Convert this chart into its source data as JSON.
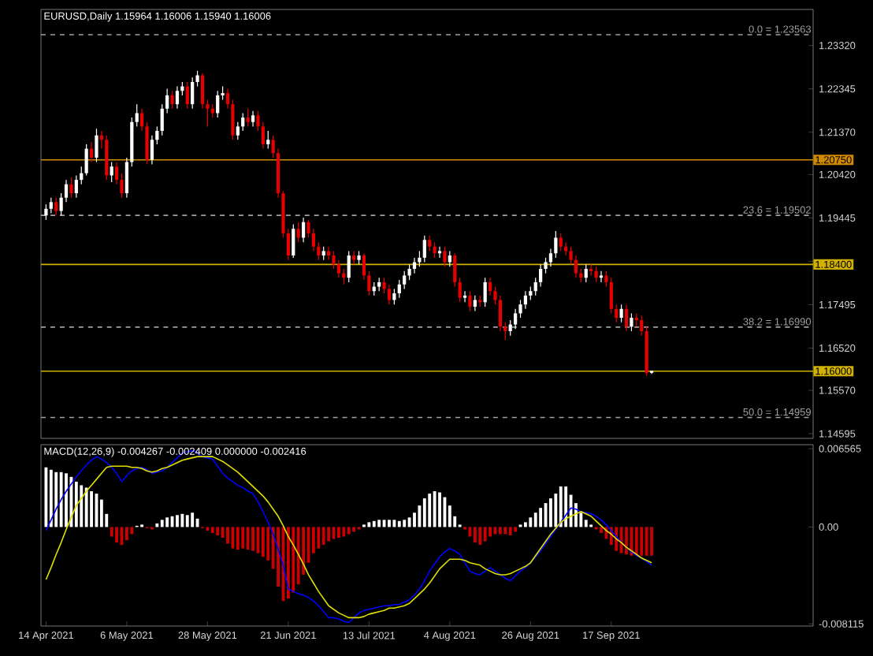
{
  "chart_data": [
    {
      "type": "candlestick",
      "title": "EURUSD,Daily  1.15964 1.16006 1.15940 1.16006",
      "tick_labels": "y",
      "categories": [
        null,
        null,
        null,
        null,
        null,
        null,
        null,
        null,
        null,
        null,
        null,
        null,
        null,
        null,
        null,
        null,
        null,
        null,
        null,
        null,
        null,
        null,
        null,
        null,
        null,
        null,
        null,
        null,
        null,
        null,
        null,
        null,
        null,
        null,
        null,
        null,
        null,
        null,
        null,
        null,
        null,
        null,
        null,
        null,
        null,
        null,
        null,
        null,
        null,
        null,
        null,
        null,
        null,
        null,
        null,
        null,
        null,
        null,
        null,
        null,
        null,
        null,
        null,
        null,
        null,
        null,
        null,
        null,
        null,
        null,
        null,
        null,
        null,
        null,
        null,
        null,
        null,
        null,
        null,
        null,
        null,
        null,
        null,
        null,
        null,
        null,
        null,
        null,
        null,
        null,
        null,
        null,
        null,
        null,
        null,
        null,
        null,
        null,
        null,
        null,
        null,
        null,
        null,
        null,
        null,
        null,
        null,
        null,
        null,
        null,
        null,
        null,
        null,
        null,
        null,
        null,
        null,
        null,
        null,
        null,
        null,
        null,
        null,
        null,
        null,
        null,
        null,
        null,
        null,
        null,
        null,
        null,
        null,
        null,
        null,
        null,
        null,
        null,
        null,
        null,
        null,
        null,
        null,
        null,
        null,
        null,
        null,
        null,
        null,
        null,
        null,
        null,
        null
      ],
      "ohlc": [
        [
          1.195,
          1.1975,
          1.194,
          1.1965
        ],
        [
          1.1965,
          1.199,
          1.1955,
          1.198
        ],
        [
          1.198,
          1.199,
          1.195,
          1.196
        ],
        [
          1.196,
          1.2,
          1.195,
          1.199
        ],
        [
          1.199,
          1.203,
          1.198,
          1.202
        ],
        [
          1.202,
          1.2035,
          1.199,
          1.2
        ],
        [
          1.2,
          1.204,
          1.199,
          1.203
        ],
        [
          1.203,
          1.206,
          1.202,
          1.2045
        ],
        [
          1.2045,
          1.211,
          1.204,
          1.21
        ],
        [
          1.21,
          1.2115,
          1.207,
          1.208
        ],
        [
          1.208,
          1.2145,
          1.207,
          1.213
        ],
        [
          1.213,
          1.214,
          1.21,
          1.212
        ],
        [
          1.212,
          1.213,
          1.203,
          1.204
        ],
        [
          1.204,
          1.207,
          1.2025,
          1.206
        ],
        [
          1.206,
          1.207,
          1.202,
          1.203
        ],
        [
          1.203,
          1.2045,
          1.199,
          1.2
        ],
        [
          1.2,
          1.208,
          1.199,
          1.207
        ],
        [
          1.207,
          1.217,
          1.206,
          1.216
        ],
        [
          1.216,
          1.22,
          1.215,
          1.218
        ],
        [
          1.218,
          1.219,
          1.214,
          1.215
        ],
        [
          1.215,
          1.216,
          1.2065,
          1.2075
        ],
        [
          1.2075,
          1.213,
          1.2065,
          1.212
        ],
        [
          1.212,
          1.215,
          1.211,
          1.214
        ],
        [
          1.214,
          1.22,
          1.213,
          1.219
        ],
        [
          1.219,
          1.2235,
          1.218,
          1.222
        ],
        [
          1.222,
          1.223,
          1.219,
          1.22
        ],
        [
          1.22,
          1.224,
          1.219,
          1.223
        ],
        [
          1.223,
          1.225,
          1.222,
          1.224
        ],
        [
          1.224,
          1.225,
          1.219,
          1.22
        ],
        [
          1.22,
          1.226,
          1.219,
          1.225
        ],
        [
          1.225,
          1.2275,
          1.224,
          1.2265
        ],
        [
          1.2265,
          1.227,
          1.219,
          1.22
        ],
        [
          1.22,
          1.221,
          1.215,
          1.219
        ],
        [
          1.219,
          1.22,
          1.217,
          1.218
        ],
        [
          1.218,
          1.223,
          1.217,
          1.222
        ],
        [
          1.222,
          1.224,
          1.221,
          1.2225
        ],
        [
          1.2225,
          1.2235,
          1.219,
          1.22
        ],
        [
          1.22,
          1.221,
          1.212,
          1.213
        ],
        [
          1.213,
          1.216,
          1.212,
          1.215
        ],
        [
          1.215,
          1.218,
          1.214,
          1.217
        ],
        [
          1.217,
          1.219,
          1.215,
          1.216
        ],
        [
          1.216,
          1.2185,
          1.215,
          1.2175
        ],
        [
          1.2175,
          1.2185,
          1.214,
          1.215
        ],
        [
          1.215,
          1.216,
          1.21,
          1.211
        ],
        [
          1.211,
          1.214,
          1.21,
          1.212
        ],
        [
          1.212,
          1.213,
          1.208,
          1.209
        ],
        [
          1.209,
          1.21,
          1.199,
          1.2
        ],
        [
          1.2,
          1.2005,
          1.19,
          1.191
        ],
        [
          1.191,
          1.192,
          1.185,
          1.186
        ],
        [
          1.186,
          1.193,
          1.1855,
          1.192
        ],
        [
          1.192,
          1.1935,
          1.189,
          1.19
        ],
        [
          1.19,
          1.1945,
          1.189,
          1.1935
        ],
        [
          1.1935,
          1.194,
          1.19,
          1.191
        ],
        [
          1.191,
          1.192,
          1.187,
          1.188
        ],
        [
          1.188,
          1.189,
          1.185,
          1.186
        ],
        [
          1.186,
          1.188,
          1.185,
          1.187
        ],
        [
          1.187,
          1.188,
          1.185,
          1.186
        ],
        [
          1.186,
          1.187,
          1.183,
          1.184
        ],
        [
          1.184,
          1.185,
          1.181,
          1.182
        ],
        [
          1.182,
          1.183,
          1.1795,
          1.181
        ],
        [
          1.181,
          1.187,
          1.18,
          1.186
        ],
        [
          1.186,
          1.187,
          1.184,
          1.185
        ],
        [
          1.185,
          1.187,
          1.184,
          1.186
        ],
        [
          1.186,
          1.1865,
          1.1805,
          1.1815
        ],
        [
          1.1815,
          1.1825,
          1.177,
          1.178
        ],
        [
          1.178,
          1.18,
          1.177,
          1.179
        ],
        [
          1.179,
          1.181,
          1.178,
          1.18
        ],
        [
          1.18,
          1.181,
          1.1775,
          1.1785
        ],
        [
          1.1785,
          1.1795,
          1.175,
          1.176
        ],
        [
          1.176,
          1.1785,
          1.175,
          1.1775
        ],
        [
          1.1775,
          1.1805,
          1.1765,
          1.1795
        ],
        [
          1.1795,
          1.1825,
          1.1785,
          1.1815
        ],
        [
          1.1815,
          1.184,
          1.1805,
          1.183
        ],
        [
          1.183,
          1.1855,
          1.182,
          1.1845
        ],
        [
          1.1845,
          1.187,
          1.1835,
          1.1855
        ],
        [
          1.1855,
          1.1905,
          1.1845,
          1.1895
        ],
        [
          1.1895,
          1.1905,
          1.187,
          1.188
        ],
        [
          1.188,
          1.189,
          1.1855,
          1.1865
        ],
        [
          1.1865,
          1.188,
          1.1855,
          1.187
        ],
        [
          1.187,
          1.188,
          1.1835,
          1.1845
        ],
        [
          1.1845,
          1.187,
          1.1835,
          1.186
        ],
        [
          1.186,
          1.1865,
          1.179,
          1.18
        ],
        [
          1.18,
          1.181,
          1.1755,
          1.1765
        ],
        [
          1.1765,
          1.178,
          1.1755,
          1.177
        ],
        [
          1.177,
          1.178,
          1.1735,
          1.1745
        ],
        [
          1.1745,
          1.177,
          1.1735,
          1.176
        ],
        [
          1.176,
          1.177,
          1.1745,
          1.1755
        ],
        [
          1.1755,
          1.181,
          1.1745,
          1.18
        ],
        [
          1.18,
          1.181,
          1.177,
          1.178
        ],
        [
          1.178,
          1.179,
          1.175,
          1.176
        ],
        [
          1.176,
          1.177,
          1.169,
          1.17
        ],
        [
          1.17,
          1.171,
          1.167,
          1.169
        ],
        [
          1.169,
          1.1715,
          1.168,
          1.1705
        ],
        [
          1.1705,
          1.174,
          1.1695,
          1.173
        ],
        [
          1.173,
          1.176,
          1.172,
          1.175
        ],
        [
          1.175,
          1.178,
          1.174,
          1.177
        ],
        [
          1.177,
          1.179,
          1.176,
          1.178
        ],
        [
          1.178,
          1.181,
          1.177,
          1.18
        ],
        [
          1.18,
          1.184,
          1.179,
          1.183
        ],
        [
          1.183,
          1.1855,
          1.182,
          1.1845
        ],
        [
          1.1845,
          1.1875,
          1.1835,
          1.1865
        ],
        [
          1.1865,
          1.1915,
          1.1855,
          1.19
        ],
        [
          1.19,
          1.191,
          1.187,
          1.188
        ],
        [
          1.188,
          1.189,
          1.186,
          1.187
        ],
        [
          1.187,
          1.188,
          1.184,
          1.185
        ],
        [
          1.185,
          1.186,
          1.181,
          1.182
        ],
        [
          1.182,
          1.183,
          1.18,
          1.181
        ],
        [
          1.181,
          1.184,
          1.18,
          1.183
        ],
        [
          1.183,
          1.184,
          1.1815,
          1.1825
        ],
        [
          1.1825,
          1.1835,
          1.18,
          1.181
        ],
        [
          1.181,
          1.1825,
          1.18,
          1.1815
        ],
        [
          1.1815,
          1.1825,
          1.179,
          1.18
        ],
        [
          1.18,
          1.181,
          1.173,
          1.174
        ],
        [
          1.174,
          1.175,
          1.171,
          1.172
        ],
        [
          1.172,
          1.175,
          1.171,
          1.174
        ],
        [
          1.174,
          1.175,
          1.169,
          1.17
        ],
        [
          1.17,
          1.173,
          1.169,
          1.172
        ],
        [
          1.172,
          1.173,
          1.17,
          1.1715
        ],
        [
          1.1715,
          1.1725,
          1.168,
          1.169
        ],
        [
          1.169,
          1.17,
          1.159,
          1.1596
        ],
        [
          1.15964,
          1.16006,
          1.1594,
          1.16006
        ],
        null,
        null,
        null,
        null,
        null,
        null,
        null,
        null,
        null,
        null,
        null,
        null,
        null,
        null,
        null,
        null,
        null,
        null,
        null,
        null,
        null,
        null,
        null,
        null,
        null,
        null,
        null,
        null,
        null,
        null,
        null,
        null
      ],
      "ylim": [
        1.1449,
        1.2413
      ],
      "yticks": [
        {
          "value": 1.2332,
          "label": "1.23320"
        },
        {
          "value": 1.22345,
          "label": "1.22345"
        },
        {
          "value": 1.2137,
          "label": "1.21370"
        },
        {
          "value": 1.2042,
          "label": "1.20420"
        },
        {
          "value": 1.19445,
          "label": "1.19445"
        },
        {
          "value": 1.1847,
          "label": null
        },
        {
          "value": 1.17495,
          "label": "1.17495"
        },
        {
          "value": 1.1652,
          "label": "1.16520"
        },
        {
          "value": 1.1557,
          "label": "1.15570"
        },
        {
          "value": 1.14595,
          "label": "1.14595"
        }
      ],
      "ref_lines": [
        {
          "axis": "y",
          "value": 1.23563,
          "label": "0.0 = 1.23563",
          "color": "#a0a0a0",
          "line_style": "dashed"
        },
        {
          "axis": "y",
          "value": 1.19502,
          "label": "23.6 = 1.19502",
          "color": "#a0a0a0",
          "line_style": "dashed"
        },
        {
          "axis": "y",
          "value": 1.1699,
          "label": "38.2 = 1.16990",
          "color": "#a0a0a0",
          "line_style": "dashed"
        },
        {
          "axis": "y",
          "value": 1.14959,
          "label": "50.0 = 1.14959",
          "color": "#a0a0a0",
          "line_style": "dashed"
        },
        {
          "axis": "y",
          "value": 1.2075,
          "label": "1.20750",
          "color": "#d08a00",
          "line_style": "solid"
        },
        {
          "axis": "y",
          "value": 1.184,
          "label": "1.18400",
          "color": "#d0b000",
          "line_style": "solid"
        },
        {
          "axis": "y",
          "value": 1.16,
          "label": "1.16000",
          "color": "#d0b000",
          "line_style": "solid"
        }
      ]
    },
    {
      "type": "bar",
      "title": "MACD(12,26,9) -0.004267 -0.002409 0.000000 -0.002416",
      "categories": [
        "14 Apr 2021",
        null,
        null,
        null,
        null,
        null,
        null,
        null,
        null,
        null,
        null,
        null,
        null,
        null,
        null,
        null,
        "6 May 2021",
        null,
        null,
        null,
        null,
        null,
        null,
        null,
        null,
        null,
        null,
        null,
        null,
        null,
        null,
        null,
        "28 May 2021",
        null,
        null,
        null,
        null,
        null,
        null,
        null,
        null,
        null,
        null,
        null,
        null,
        null,
        null,
        null,
        "21 Jun 2021",
        null,
        null,
        null,
        null,
        null,
        null,
        null,
        null,
        null,
        null,
        null,
        null,
        null,
        null,
        null,
        "13 Jul 2021",
        null,
        null,
        null,
        null,
        null,
        null,
        null,
        null,
        null,
        null,
        null,
        null,
        null,
        null,
        null,
        "4 Aug 2021",
        null,
        null,
        null,
        null,
        null,
        null,
        null,
        null,
        null,
        null,
        null,
        null,
        null,
        null,
        null,
        "26 Aug 2021",
        null,
        null,
        null,
        null,
        null,
        null,
        null,
        null,
        null,
        null,
        null,
        null,
        null,
        null,
        null,
        "17 Sep 2021",
        null,
        null,
        null,
        null,
        null,
        null,
        null,
        null,
        null,
        null,
        null,
        null,
        null,
        null,
        null,
        null,
        null,
        null,
        null,
        null,
        null,
        null,
        null,
        null,
        null,
        null,
        null,
        null,
        null,
        null,
        null,
        null,
        null,
        null,
        null,
        null,
        null,
        null,
        null,
        null
      ],
      "ylim": [
        -0.0083,
        0.0069
      ],
      "yticks": [
        {
          "value": 0.006565,
          "label": "0.006565"
        },
        {
          "value": 0,
          "label": "0.00"
        },
        {
          "value": -0.008115,
          "label": "-0.008115"
        }
      ],
      "series": [
        {
          "type": "bar",
          "values": [
            0.005,
            0.0048,
            0.0046,
            0.0046,
            0.0045,
            0.0042,
            0.0038,
            0.0035,
            0.0033,
            0.003,
            0.0028,
            0.0023,
            0.0011,
            -0.0008,
            -0.0013,
            -0.0015,
            -0.0011,
            -0.0006,
            0.0001,
            0.0002,
            -0.0001,
            -0.0002,
            0.0003,
            0.0006,
            0.0008,
            0.0009,
            0.001,
            0.0011,
            0.001,
            0.0012,
            0.0007,
            -0.0001,
            -0.0003,
            -0.0005,
            -0.0007,
            -0.0009,
            -0.0014,
            -0.0018,
            -0.0019,
            -0.0018,
            -0.0019,
            -0.002,
            -0.0022,
            -0.0025,
            -0.0028,
            -0.0035,
            -0.005,
            -0.0062,
            -0.006,
            -0.0055,
            -0.0048,
            -0.004,
            -0.003,
            -0.0022,
            -0.0018,
            -0.0015,
            -0.0012,
            -0.001,
            -0.0009,
            -0.0008,
            -0.0006,
            -0.0004,
            -0.0002,
            0.0002,
            0.0004,
            0.0005,
            0.0006,
            0.0006,
            0.0006,
            0.0006,
            0.0005,
            0.0006,
            0.0008,
            0.0012,
            0.0018,
            0.0024,
            0.0028,
            0.003,
            0.0029,
            0.0025,
            0.0018,
            0.0009,
            0.0002,
            -0.0002,
            -0.0008,
            -0.0013,
            -0.0015,
            -0.0012,
            -0.0008,
            -0.0006,
            -0.0006,
            -0.0006,
            -0.0007,
            -0.0004,
            0.0002,
            0.0004,
            0.0008,
            0.0012,
            0.0016,
            0.002,
            0.0024,
            0.0028,
            0.0034,
            0.0034,
            0.0027,
            0.002,
            0.0012,
            0.0006,
            0.0002,
            -0.0002,
            -0.0005,
            -0.001,
            -0.0015,
            -0.002,
            -0.0022,
            -0.0023,
            -0.0024,
            -0.0024,
            -0.0024,
            -0.0024,
            -0.0024,
            null,
            null,
            null,
            null,
            null,
            null,
            null,
            null,
            null,
            null,
            null,
            null,
            null,
            null,
            null,
            null,
            null,
            null,
            null,
            null,
            null,
            null,
            null,
            null,
            null,
            null,
            null,
            null,
            null,
            null,
            null,
            null
          ],
          "colors": [
            "#ffffff",
            "#ffffff",
            "#ffffff",
            "#ffffff",
            "#ffffff",
            "#ffffff",
            "#ffffff",
            "#ffffff",
            "#ffffff",
            "#ffffff",
            "#ffffff",
            "#ffffff",
            "#ffffff",
            "#cc0000",
            "#cc0000",
            "#cc0000",
            "#cc0000",
            "#cc0000",
            "#ffffff",
            "#ffffff",
            "#cc0000",
            "#cc0000",
            "#ffffff",
            "#ffffff",
            "#ffffff",
            "#ffffff",
            "#ffffff",
            "#ffffff",
            "#ffffff",
            "#ffffff",
            "#ffffff",
            "#cc0000",
            "#cc0000",
            "#cc0000",
            "#cc0000",
            "#cc0000",
            "#cc0000",
            "#cc0000",
            "#cc0000",
            "#cc0000",
            "#cc0000",
            "#cc0000",
            "#cc0000",
            "#cc0000",
            "#cc0000",
            "#cc0000",
            "#cc0000",
            "#cc0000",
            "#cc0000",
            "#cc0000",
            "#cc0000",
            "#cc0000",
            "#cc0000",
            "#cc0000",
            "#cc0000",
            "#cc0000",
            "#cc0000",
            "#cc0000",
            "#cc0000",
            "#cc0000",
            "#cc0000",
            "#cc0000",
            "#cc0000",
            "#ffffff",
            "#ffffff",
            "#ffffff",
            "#ffffff",
            "#ffffff",
            "#ffffff",
            "#ffffff",
            "#ffffff",
            "#ffffff",
            "#ffffff",
            "#ffffff",
            "#ffffff",
            "#ffffff",
            "#ffffff",
            "#ffffff",
            "#ffffff",
            "#ffffff",
            "#ffffff",
            "#ffffff",
            "#ffffff",
            "#cc0000",
            "#cc0000",
            "#cc0000",
            "#cc0000",
            "#cc0000",
            "#cc0000",
            "#cc0000",
            "#cc0000",
            "#cc0000",
            "#cc0000",
            "#cc0000",
            "#ffffff",
            "#ffffff",
            "#ffffff",
            "#ffffff",
            "#ffffff",
            "#ffffff",
            "#ffffff",
            "#ffffff",
            "#ffffff",
            "#ffffff",
            "#ffffff",
            "#ffffff",
            "#ffffff",
            "#ffffff",
            "#ffffff",
            "#cc0000",
            "#cc0000",
            "#cc0000",
            "#cc0000",
            "#cc0000",
            "#cc0000",
            "#cc0000",
            "#cc0000",
            "#cc0000",
            "#cc0000",
            "#cc0000",
            "#cc0000",
            null,
            null,
            null,
            null,
            null,
            null,
            null,
            null,
            null,
            null,
            null,
            null,
            null,
            null,
            null,
            null,
            null,
            null,
            null,
            null,
            null,
            null,
            null,
            null,
            null,
            null,
            null,
            null,
            null,
            null,
            null,
            null
          ]
        },
        {
          "type": "line",
          "color": "#0000ff",
          "values": [
            -0.0003,
            0.0006,
            0.0015,
            0.0023,
            0.003,
            0.0036,
            0.0042,
            0.0047,
            0.0052,
            0.0056,
            0.0059,
            0.0057,
            0.0054,
            0.005,
            0.0045,
            0.0038,
            0.0043,
            0.0047,
            0.0049,
            0.005,
            0.0048,
            0.0045,
            0.0046,
            0.0047,
            0.005,
            0.0054,
            0.0058,
            0.0062,
            0.0063,
            0.0064,
            0.0062,
            0.0059,
            0.0058,
            0.0057,
            0.0051,
            0.0045,
            0.0041,
            0.0038,
            0.0035,
            0.0033,
            0.003,
            0.0028,
            0.0021,
            0.0013,
            0.0004,
            -0.0006,
            -0.0019,
            -0.0032,
            -0.0052,
            -0.0054,
            -0.0056,
            -0.0057,
            -0.0059,
            -0.0062,
            -0.0066,
            -0.0071,
            -0.0076,
            -0.0076,
            -0.0077,
            -0.0079,
            -0.008,
            -0.0076,
            -0.0072,
            -0.007,
            -0.0069,
            -0.0068,
            -0.0067,
            -0.0066,
            -0.0066,
            -0.0065,
            -0.0065,
            -0.0063,
            -0.0061,
            -0.0057,
            -0.0052,
            -0.0045,
            -0.0037,
            -0.0031,
            -0.0025,
            -0.0021,
            -0.0018,
            -0.002,
            -0.0023,
            -0.003,
            -0.0037,
            -0.0039,
            -0.004,
            -0.0037,
            -0.0034,
            -0.0037,
            -0.004,
            -0.0043,
            -0.0045,
            -0.0041,
            -0.0037,
            -0.0034,
            -0.003,
            -0.0025,
            -0.002,
            -0.0014,
            -0.0008,
            -0.0002,
            0.0004,
            0.001,
            0.0016,
            0.0015,
            0.0013,
            0.0012,
            0.0011,
            0.0009,
            0.0006,
            0.0002,
            -0.0003,
            -0.0008,
            -0.0013,
            -0.0017,
            -0.0021,
            -0.0024,
            -0.0026,
            -0.0029,
            -0.0032,
            null,
            null,
            null,
            null,
            null,
            null,
            null,
            null,
            null,
            null,
            null,
            null,
            null,
            null,
            null,
            null,
            null,
            null,
            null,
            null,
            null,
            null,
            null,
            null,
            null,
            null,
            null,
            null,
            null,
            null,
            null,
            null
          ]
        },
        {
          "type": "line",
          "color": "#e0e000",
          "values": [
            -0.0044,
            -0.0034,
            -0.0023,
            -0.0013,
            -0.0002,
            0.0008,
            0.0018,
            0.0024,
            0.003,
            0.0035,
            0.004,
            0.0045,
            0.005,
            0.0051,
            0.0051,
            0.0051,
            0.0051,
            0.005,
            0.005,
            0.0049,
            0.0047,
            0.0046,
            0.0047,
            0.0049,
            0.005,
            0.0052,
            0.0054,
            0.0056,
            0.0057,
            0.0058,
            0.0059,
            0.0059,
            0.0059,
            0.0059,
            0.0057,
            0.0055,
            0.0052,
            0.0049,
            0.0046,
            0.0042,
            0.0038,
            0.0034,
            0.003,
            0.0026,
            0.0021,
            0.0015,
            0.0009,
            0.0001,
            -0.0008,
            -0.0015,
            -0.0023,
            -0.0031,
            -0.004,
            -0.0047,
            -0.0054,
            -0.006,
            -0.0066,
            -0.0069,
            -0.0072,
            -0.0074,
            -0.0076,
            -0.0076,
            -0.0076,
            -0.0075,
            -0.0073,
            -0.0072,
            -0.0071,
            -0.007,
            -0.0068,
            -0.0068,
            -0.0067,
            -0.0066,
            -0.0064,
            -0.006,
            -0.0056,
            -0.0052,
            -0.0047,
            -0.0041,
            -0.0035,
            -0.0031,
            -0.0027,
            -0.0027,
            -0.0027,
            -0.0028,
            -0.003,
            -0.0031,
            -0.0032,
            -0.0035,
            -0.0037,
            -0.0039,
            -0.004,
            -0.004,
            -0.0039,
            -0.0037,
            -0.0035,
            -0.0033,
            -0.003,
            -0.0024,
            -0.0018,
            -0.0012,
            -0.0006,
            -0.0001,
            0.0004,
            0.0007,
            0.0009,
            0.0011,
            0.0013,
            0.0011,
            0.0009,
            0.0005,
            0.0001,
            -0.0003,
            -0.0006,
            -0.001,
            -0.0013,
            -0.0017,
            -0.002,
            -0.0023,
            -0.0026,
            -0.0028,
            -0.003,
            null,
            null,
            null,
            null,
            null,
            null,
            null,
            null,
            null,
            null,
            null,
            null,
            null,
            null,
            null,
            null,
            null,
            null,
            null,
            null,
            null,
            null,
            null,
            null,
            null,
            null,
            null,
            null,
            null,
            null,
            null,
            null
          ]
        }
      ]
    }
  ]
}
